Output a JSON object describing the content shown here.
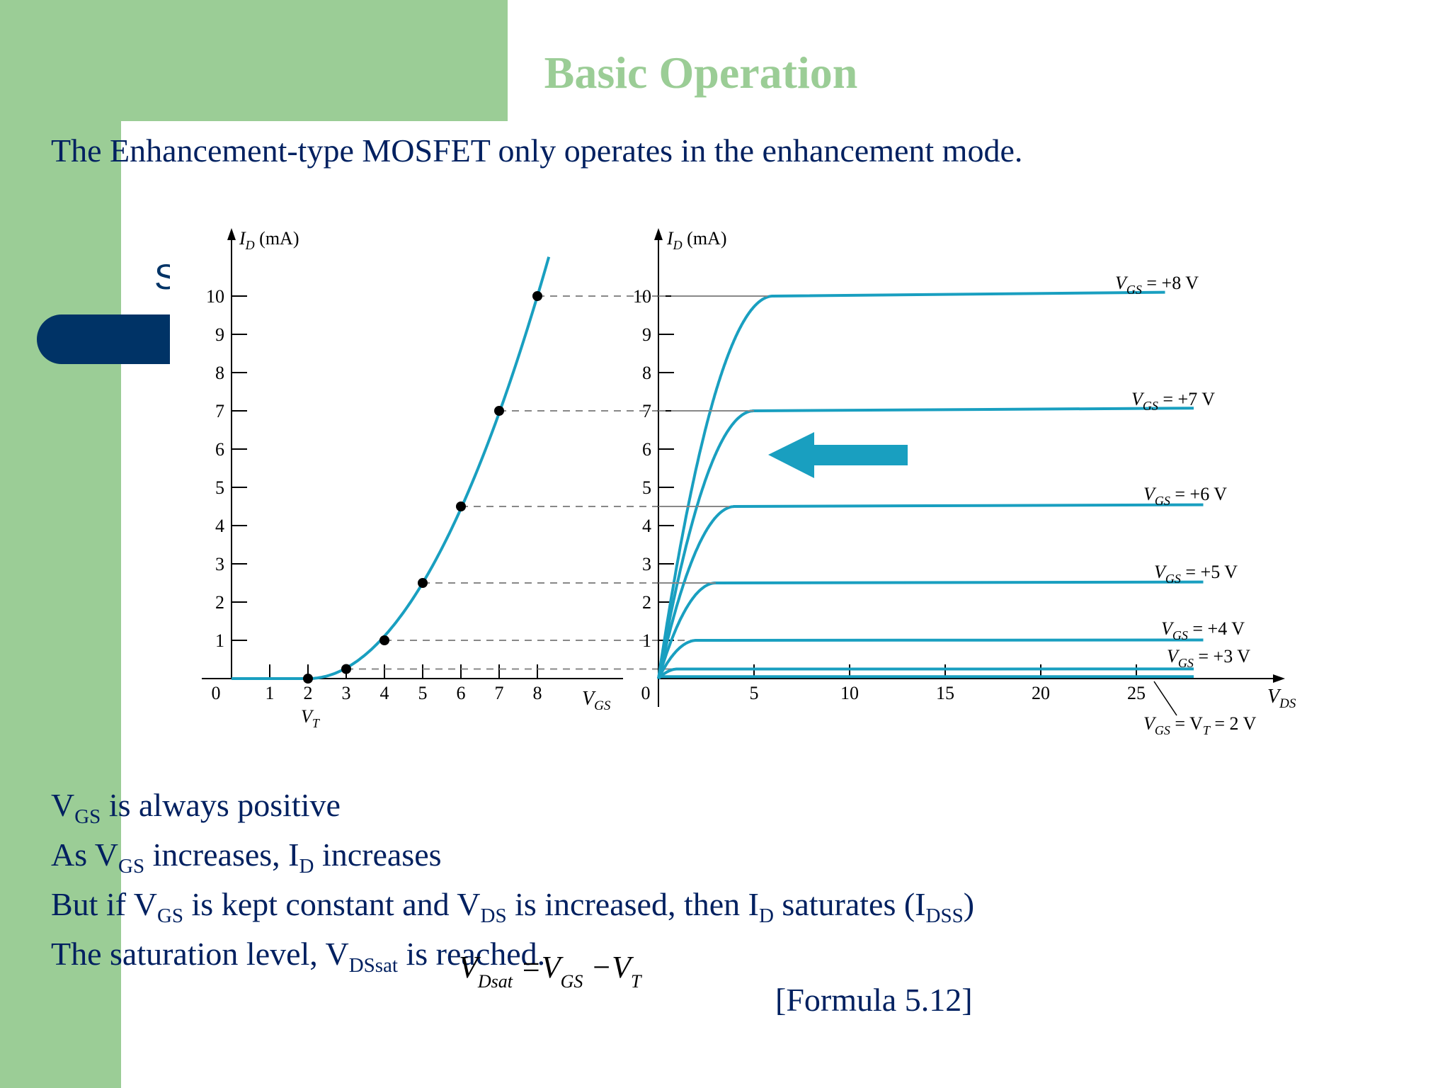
{
  "slide": {
    "title": "Basic Operation",
    "intro": "The Enhancement-type MOSFET only operates in the enhancement mode.",
    "hidden_fragment": "S",
    "bullets": {
      "b1": {
        "v": "V",
        "gs": "GS",
        "rest": " is always positive"
      },
      "b2": {
        "pre": "As V",
        "gs": "GS",
        "mid": " increases, I",
        "d": "D",
        "rest": " increases"
      },
      "b3": {
        "pre": "But if V",
        "gs": "GS",
        "mid1": " is kept constant and V",
        "ds": "DS",
        "mid2": " is increased, then I",
        "d": "D",
        "mid3": " saturates (I",
        "dss": "DSS",
        "end": ")"
      },
      "b4": {
        "pre": "The saturation level, V",
        "dssat": "DSsat",
        "rest": "  is reached."
      }
    },
    "formula": {
      "v1": "V",
      "dsat": "Dsat",
      "eq": " =V",
      "gs": "GS",
      "minus": " −V",
      "t": "T"
    },
    "formula_ref": "[Formula 5.12]"
  },
  "colors": {
    "accent_green": "#9bcd96",
    "navy": "#003366",
    "text": "#002060",
    "curve": "#199fc0"
  },
  "chart_data": [
    {
      "type": "line",
      "id": "transfer",
      "ylabel": {
        "base": "I",
        "sub": "D",
        "unit": " (mA)"
      },
      "xlabel": {
        "base": "V",
        "sub": "GS"
      },
      "xlim": [
        0,
        8
      ],
      "ylim": [
        0,
        10
      ],
      "x_ticks": [
        "0",
        "1",
        "2",
        "3",
        "4",
        "5",
        "6",
        "7",
        "8"
      ],
      "y_ticks": [
        "1",
        "2",
        "3",
        "4",
        "5",
        "6",
        "7",
        "8",
        "9",
        "10"
      ],
      "threshold_label": {
        "base": "V",
        "sub": "T"
      },
      "series": [
        {
          "x": [
            2,
            3,
            4,
            5,
            6,
            7,
            8
          ],
          "y": [
            0,
            0.25,
            1,
            2.5,
            4.5,
            7,
            10
          ]
        }
      ]
    },
    {
      "type": "line",
      "id": "drain",
      "ylabel": {
        "base": "I",
        "sub": "D",
        "unit": " (mA)"
      },
      "xlabel": {
        "base": "V",
        "sub": "DS"
      },
      "xlim": [
        0,
        25
      ],
      "ylim": [
        0,
        10
      ],
      "x_ticks": [
        "0",
        "5",
        "10",
        "15",
        "20",
        "25"
      ],
      "y_ticks": [
        "1",
        "2",
        "3",
        "4",
        "5",
        "6",
        "7",
        "8",
        "9",
        "10"
      ],
      "series": [
        {
          "name": "V_GS = +8 V",
          "label": {
            "a": "V",
            "b": "GS",
            "c": " = +8 V"
          },
          "saturation": 10,
          "vdsat": 6
        },
        {
          "name": "V_GS = +7 V",
          "label": {
            "a": "V",
            "b": "GS",
            "c": " = +7 V"
          },
          "saturation": 7,
          "vdsat": 5
        },
        {
          "name": "V_GS = +6 V",
          "label": {
            "a": "V",
            "b": "GS",
            "c": " = +6 V"
          },
          "saturation": 4.5,
          "vdsat": 4
        },
        {
          "name": "V_GS = +5 V",
          "label": {
            "a": "V",
            "b": "GS",
            "c": " = +5 V"
          },
          "saturation": 2.5,
          "vdsat": 3
        },
        {
          "name": "V_GS = +4 V",
          "label": {
            "a": "V",
            "b": "GS",
            "c": " = +4 V"
          },
          "saturation": 1,
          "vdsat": 2
        },
        {
          "name": "V_GS = +3 V",
          "label": {
            "a": "V",
            "b": "GS",
            "c": " = +3 V"
          },
          "saturation": 0.25,
          "vdsat": 1
        },
        {
          "name": "V_GS = V_T = 2 V",
          "label": {
            "a": "V",
            "b": "GS",
            "c": " = V",
            "d": "T",
            "e": " = 2 V"
          },
          "saturation": 0,
          "vdsat": 0
        }
      ]
    }
  ]
}
